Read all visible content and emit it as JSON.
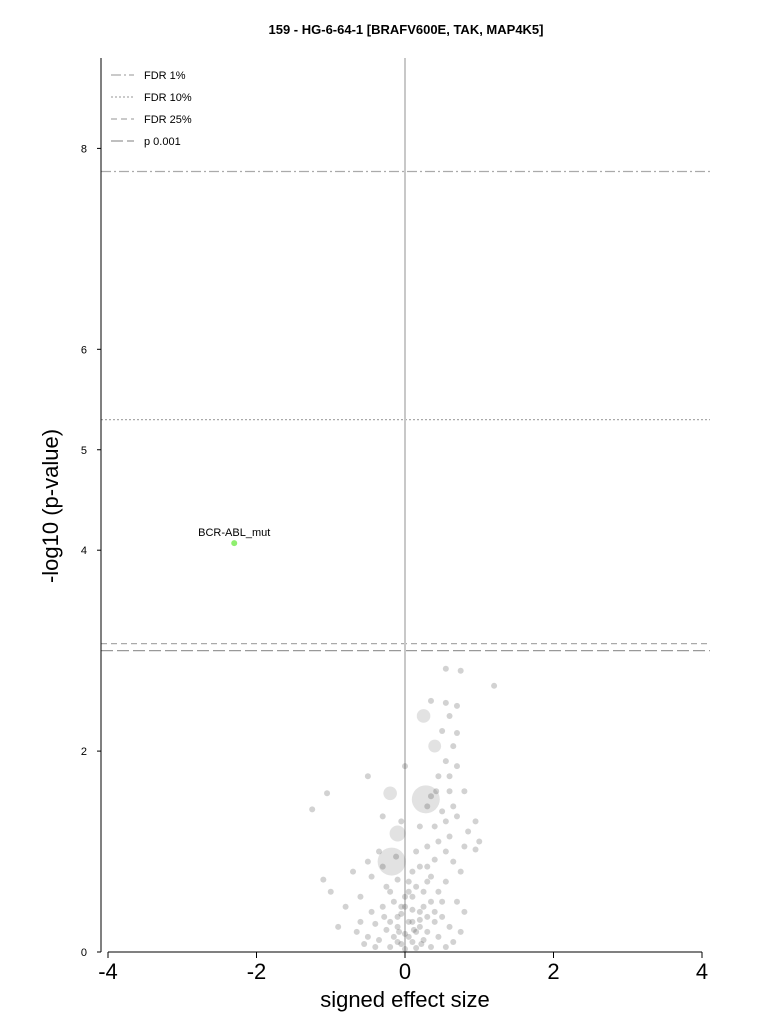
{
  "chart_data": {
    "type": "scatter",
    "title": "159 - HG-6-64-1 [BRAFV600E, TAK, MAP4K5]",
    "xlabel": "signed effect size",
    "ylabel": "-log10 (p-value)",
    "xlim": [
      -4,
      4
    ],
    "ylim": [
      0,
      8.9
    ],
    "xticks": [
      -4,
      -2,
      0,
      2,
      4
    ],
    "yticks": [
      0,
      2,
      4,
      5,
      6,
      8
    ],
    "grid": false,
    "legend_position": "top-left",
    "thresholds": [
      {
        "name": "FDR 1%",
        "y": 7.77,
        "style": "dashdot",
        "color": "#aaaaaa"
      },
      {
        "name": "FDR 10%",
        "y": 5.3,
        "style": "dotted",
        "color": "#aaaaaa"
      },
      {
        "name": "FDR 25%",
        "y": 3.07,
        "style": "dashed",
        "color": "#aaaaaa"
      },
      {
        "name": "p 0.001",
        "y": 3.0,
        "style": "longdash",
        "color": "#999999"
      }
    ],
    "highlight": {
      "label": "BCR-ABL_mut",
      "x": -2.3,
      "y": 4.07,
      "color": "#8fef6f"
    },
    "point_color": "#333333",
    "big_points": [
      {
        "x": 0.28,
        "y": 1.52,
        "size": 3
      },
      {
        "x": -0.18,
        "y": 0.9,
        "size": 3
      },
      {
        "x": -0.1,
        "y": 1.18,
        "size": 1.5
      },
      {
        "x": -0.2,
        "y": 1.58,
        "size": 1.2
      },
      {
        "x": 0.25,
        "y": 2.35,
        "size": 1.2
      },
      {
        "x": 0.4,
        "y": 2.05,
        "size": 1.1
      }
    ],
    "points": [
      [
        0.55,
        2.82
      ],
      [
        0.75,
        2.8
      ],
      [
        0.35,
        2.5
      ],
      [
        0.55,
        2.48
      ],
      [
        0.7,
        2.45
      ],
      [
        0.6,
        2.35
      ],
      [
        1.2,
        2.65
      ],
      [
        0.5,
        2.2
      ],
      [
        0.7,
        2.18
      ],
      [
        0.65,
        2.05
      ],
      [
        0.55,
        1.9
      ],
      [
        0.7,
        1.85
      ],
      [
        0.45,
        1.75
      ],
      [
        0.8,
        1.6
      ],
      [
        0.6,
        1.6
      ],
      [
        0.35,
        1.55
      ],
      [
        -1.05,
        1.58
      ],
      [
        -1.25,
        1.42
      ],
      [
        -0.5,
        1.75
      ],
      [
        0.0,
        1.85
      ],
      [
        -0.3,
        1.35
      ],
      [
        0.5,
        1.4
      ],
      [
        0.7,
        1.35
      ],
      [
        0.95,
        1.3
      ],
      [
        0.85,
        1.2
      ],
      [
        0.4,
        1.25
      ],
      [
        1.0,
        1.1
      ],
      [
        0.6,
        1.15
      ],
      [
        0.2,
        1.25
      ],
      [
        -0.05,
        1.3
      ],
      [
        0.95,
        1.02
      ],
      [
        0.8,
        1.05
      ],
      [
        0.55,
        1.0
      ],
      [
        0.3,
        1.05
      ],
      [
        -0.35,
        1.0
      ],
      [
        -0.5,
        0.9
      ],
      [
        -0.7,
        0.8
      ],
      [
        -0.45,
        0.75
      ],
      [
        0.65,
        0.9
      ],
      [
        0.75,
        0.8
      ],
      [
        0.4,
        0.92
      ],
      [
        0.2,
        0.85
      ],
      [
        0.1,
        0.8
      ],
      [
        -0.1,
        0.72
      ],
      [
        -0.25,
        0.65
      ],
      [
        -1.1,
        0.72
      ],
      [
        -1.0,
        0.6
      ],
      [
        -0.6,
        0.55
      ],
      [
        0.55,
        0.7
      ],
      [
        0.45,
        0.6
      ],
      [
        0.3,
        0.7
      ],
      [
        0.15,
        0.65
      ],
      [
        0.0,
        0.55
      ],
      [
        -0.15,
        0.5
      ],
      [
        -0.3,
        0.45
      ],
      [
        -0.45,
        0.4
      ],
      [
        0.35,
        0.5
      ],
      [
        0.25,
        0.45
      ],
      [
        0.1,
        0.42
      ],
      [
        -0.05,
        0.38
      ],
      [
        -0.6,
        0.3
      ],
      [
        -0.4,
        0.28
      ],
      [
        0.5,
        0.35
      ],
      [
        0.4,
        0.3
      ],
      [
        0.2,
        0.32
      ],
      [
        0.05,
        0.3
      ],
      [
        -0.1,
        0.25
      ],
      [
        -0.25,
        0.22
      ],
      [
        0.6,
        0.25
      ],
      [
        0.3,
        0.2
      ],
      [
        0.15,
        0.2
      ],
      [
        0.0,
        0.18
      ],
      [
        -0.15,
        0.15
      ],
      [
        -0.35,
        0.12
      ],
      [
        -0.5,
        0.15
      ],
      [
        0.45,
        0.15
      ],
      [
        0.25,
        0.12
      ],
      [
        0.1,
        0.1
      ],
      [
        -0.05,
        0.08
      ],
      [
        -0.2,
        0.05
      ],
      [
        0.35,
        0.05
      ],
      [
        0.15,
        0.04
      ],
      [
        0.0,
        0.03
      ],
      [
        -0.1,
        0.1
      ],
      [
        0.05,
        0.15
      ],
      [
        0.2,
        0.25
      ],
      [
        -0.05,
        0.45
      ],
      [
        0.1,
        0.55
      ],
      [
        0.25,
        0.6
      ],
      [
        0.05,
        0.7
      ],
      [
        -0.2,
        0.6
      ],
      [
        0.3,
        0.85
      ],
      [
        0.15,
        1.0
      ],
      [
        0.45,
        1.1
      ],
      [
        0.55,
        1.3
      ],
      [
        0.3,
        1.45
      ],
      [
        0.6,
        1.75
      ],
      [
        0.5,
        0.5
      ],
      [
        -0.3,
        0.85
      ],
      [
        -0.65,
        0.2
      ],
      [
        -0.8,
        0.45
      ],
      [
        -0.9,
        0.25
      ],
      [
        0.7,
        0.5
      ],
      [
        0.8,
        0.4
      ],
      [
        0.75,
        0.2
      ],
      [
        0.65,
        0.1
      ],
      [
        -0.4,
        0.05
      ],
      [
        -0.55,
        0.08
      ],
      [
        0.55,
        0.05
      ],
      [
        0.4,
        0.4
      ],
      [
        0.2,
        0.4
      ],
      [
        0.1,
        0.3
      ],
      [
        -0.1,
        0.35
      ],
      [
        -0.2,
        0.3
      ],
      [
        0.0,
        0.45
      ],
      [
        0.3,
        0.35
      ],
      [
        0.12,
        0.22
      ],
      [
        -0.08,
        0.2
      ],
      [
        0.22,
        0.08
      ],
      [
        -0.28,
        0.35
      ],
      [
        0.05,
        0.6
      ],
      [
        0.35,
        0.75
      ],
      [
        -0.12,
        0.95
      ],
      [
        0.42,
        1.6
      ],
      [
        0.65,
        1.45
      ]
    ]
  }
}
